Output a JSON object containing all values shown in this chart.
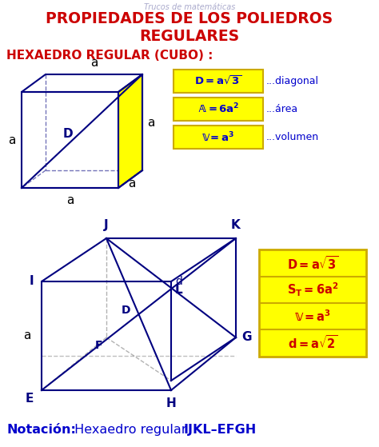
{
  "bg_color": "#ffffff",
  "title_line1": "PROPIEDADES DE LOS POLIEDROS",
  "title_line2": "REGULARES",
  "title_color": "#cc0000",
  "subtitle": "HEXAEDRO REGULAR (CUBO) :",
  "subtitle_color": "#cc0000",
  "notation_bold": "Notación:",
  "notation_rest": " Hexaedro regular ",
  "notation_bold2": "IJKL–EFGH",
  "notation_color": "#0000cc",
  "yellow": "#ffff00",
  "yellow_border": "#ccaa00",
  "cube_color": "#000080",
  "label_color": "#000080",
  "formula1": [
    "D = a\\sqrt{3}",
    "\\mathbb{A} = 6a^2",
    "\\mathbb{V} = a^3"
  ],
  "formula1_labels": [
    "...diagonal",
    "...área",
    "...volumen"
  ],
  "formula2": [
    "D = a\\sqrt{3}",
    "S_T = 6a^2",
    "\\mathbb{V} = a^3",
    "d = a\\sqrt{2}"
  ],
  "top_watermark": "Trucos de matemáticas"
}
